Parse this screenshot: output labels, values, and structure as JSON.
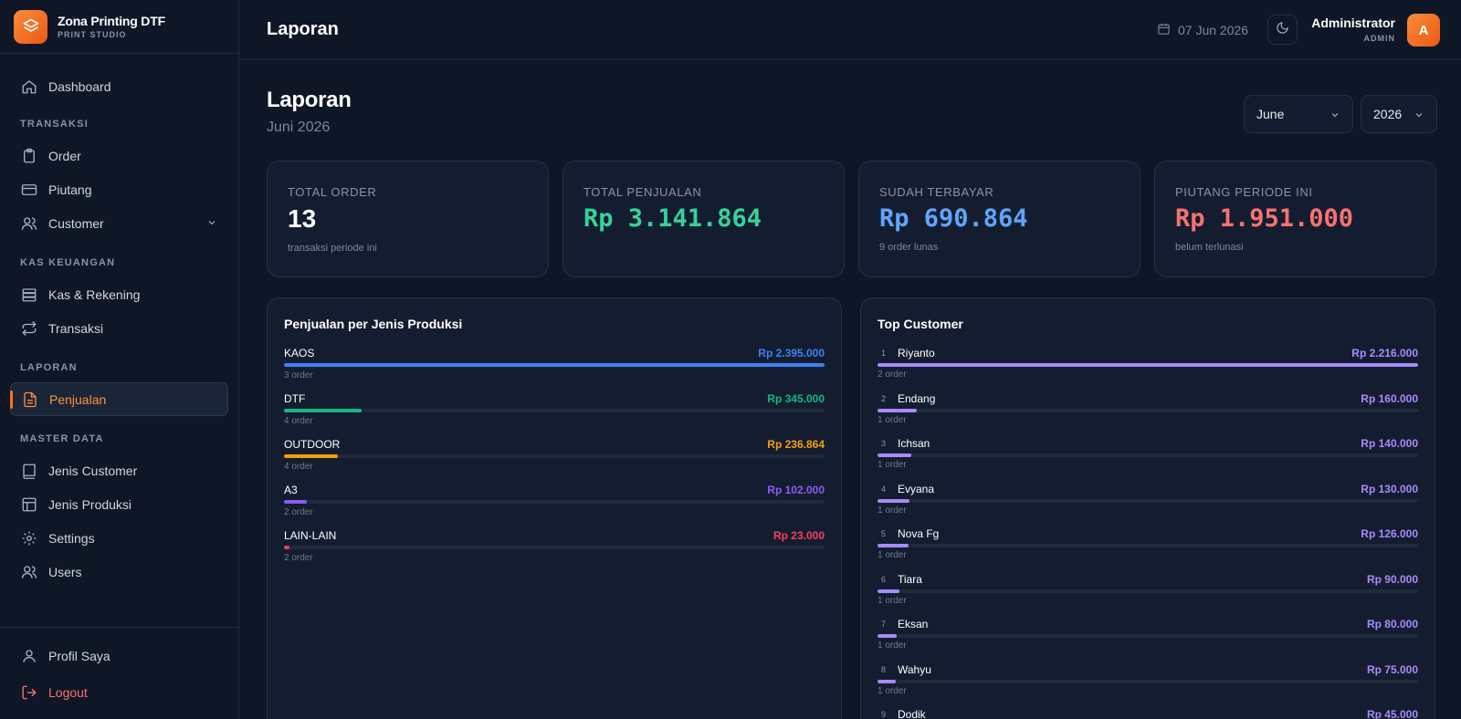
{
  "brand": {
    "name": "Zona Printing DTF",
    "subtitle": "PRINT STUDIO"
  },
  "sidebar": {
    "dashboard": "Dashboard",
    "sections": {
      "transaksi": "TRANSAKSI",
      "kas": "KAS KEUANGAN",
      "laporan": "LAPORAN",
      "master": "MASTER DATA"
    },
    "items": {
      "order": "Order",
      "piutang": "Piutang",
      "customer": "Customer",
      "kas_rekening": "Kas & Rekening",
      "transaksi": "Transaksi",
      "penjualan": "Penjualan",
      "jenis_customer": "Jenis Customer",
      "jenis_produksi": "Jenis Produksi",
      "settings": "Settings",
      "users": "Users"
    },
    "bottom": {
      "profil": "Profil Saya",
      "logout": "Logout"
    }
  },
  "topbar": {
    "title": "Laporan",
    "date": "07 Jun 2026",
    "user_name": "Administrator",
    "user_role": "ADMIN",
    "avatar_initial": "A"
  },
  "page": {
    "title": "Laporan",
    "subtitle": "Juni 2026",
    "month_select": "June",
    "year_select": "2026"
  },
  "stats": [
    {
      "label": "TOTAL ORDER",
      "value": "13",
      "desc": "transaksi periode ini",
      "color": "#ffffff"
    },
    {
      "label": "TOTAL PENJUALAN",
      "value": "Rp 3.141.864",
      "desc": "",
      "color": "#34d399"
    },
    {
      "label": "SUDAH TERBAYAR",
      "value": "Rp 690.864",
      "desc": "9 order lunas",
      "color": "#60a5fa"
    },
    {
      "label": "PIUTANG PERIODE INI",
      "value": "Rp 1.951.000",
      "desc": "belum terlunasi",
      "color": "#f87171"
    }
  ],
  "produksi_panel": {
    "title": "Penjualan per Jenis Produksi",
    "items": [
      {
        "name": "KAOS",
        "value": "Rp 2.395.000",
        "orders": "3 order",
        "fraction": 1.0,
        "color": "#3b82f6"
      },
      {
        "name": "DTF",
        "value": "Rp 345.000",
        "orders": "4 order",
        "fraction": 0.144,
        "color": "#10b981"
      },
      {
        "name": "OUTDOOR",
        "value": "Rp 236.864",
        "orders": "4 order",
        "fraction": 0.099,
        "color": "#f59e0b"
      },
      {
        "name": "A3",
        "value": "Rp 102.000",
        "orders": "2 order",
        "fraction": 0.043,
        "color": "#8b5cf6"
      },
      {
        "name": "LAIN-LAIN",
        "value": "Rp 23.000",
        "orders": "2 order",
        "fraction": 0.01,
        "color": "#f43f5e"
      }
    ]
  },
  "customer_panel": {
    "title": "Top Customer",
    "items": [
      {
        "rank": "1",
        "name": "Riyanto",
        "value": "Rp 2.216.000",
        "orders": "2 order",
        "fraction": 1.0
      },
      {
        "rank": "2",
        "name": "Endang",
        "value": "Rp 160.000",
        "orders": "1 order",
        "fraction": 0.072
      },
      {
        "rank": "3",
        "name": "Ichsan",
        "value": "Rp 140.000",
        "orders": "1 order",
        "fraction": 0.063
      },
      {
        "rank": "4",
        "name": "Evyana",
        "value": "Rp 130.000",
        "orders": "1 order",
        "fraction": 0.059
      },
      {
        "rank": "5",
        "name": "Nova Fg",
        "value": "Rp 126.000",
        "orders": "1 order",
        "fraction": 0.057
      },
      {
        "rank": "6",
        "name": "Tiara",
        "value": "Rp 90.000",
        "orders": "1 order",
        "fraction": 0.041
      },
      {
        "rank": "7",
        "name": "Eksan",
        "value": "Rp 80.000",
        "orders": "1 order",
        "fraction": 0.036
      },
      {
        "rank": "8",
        "name": "Wahyu",
        "value": "Rp 75.000",
        "orders": "1 order",
        "fraction": 0.034
      },
      {
        "rank": "9",
        "name": "Dodik",
        "value": "Rp 45.000",
        "orders": "",
        "fraction": 0.02
      }
    ],
    "bar_color": "#a78bfa",
    "value_color": "#a78bfa"
  },
  "colors": {
    "accent": "#f97316",
    "background": "#0f1626",
    "card": "#141d30"
  },
  "icons": [
    "layers-icon",
    "home-icon",
    "clipboard-icon",
    "credit-card-icon",
    "users-icon",
    "database-icon",
    "repeat-icon",
    "file-text-icon",
    "book-icon",
    "layout-icon",
    "gear-icon",
    "user-icon",
    "logout-icon",
    "calendar-icon",
    "moon-icon",
    "chevron-down-icon"
  ]
}
